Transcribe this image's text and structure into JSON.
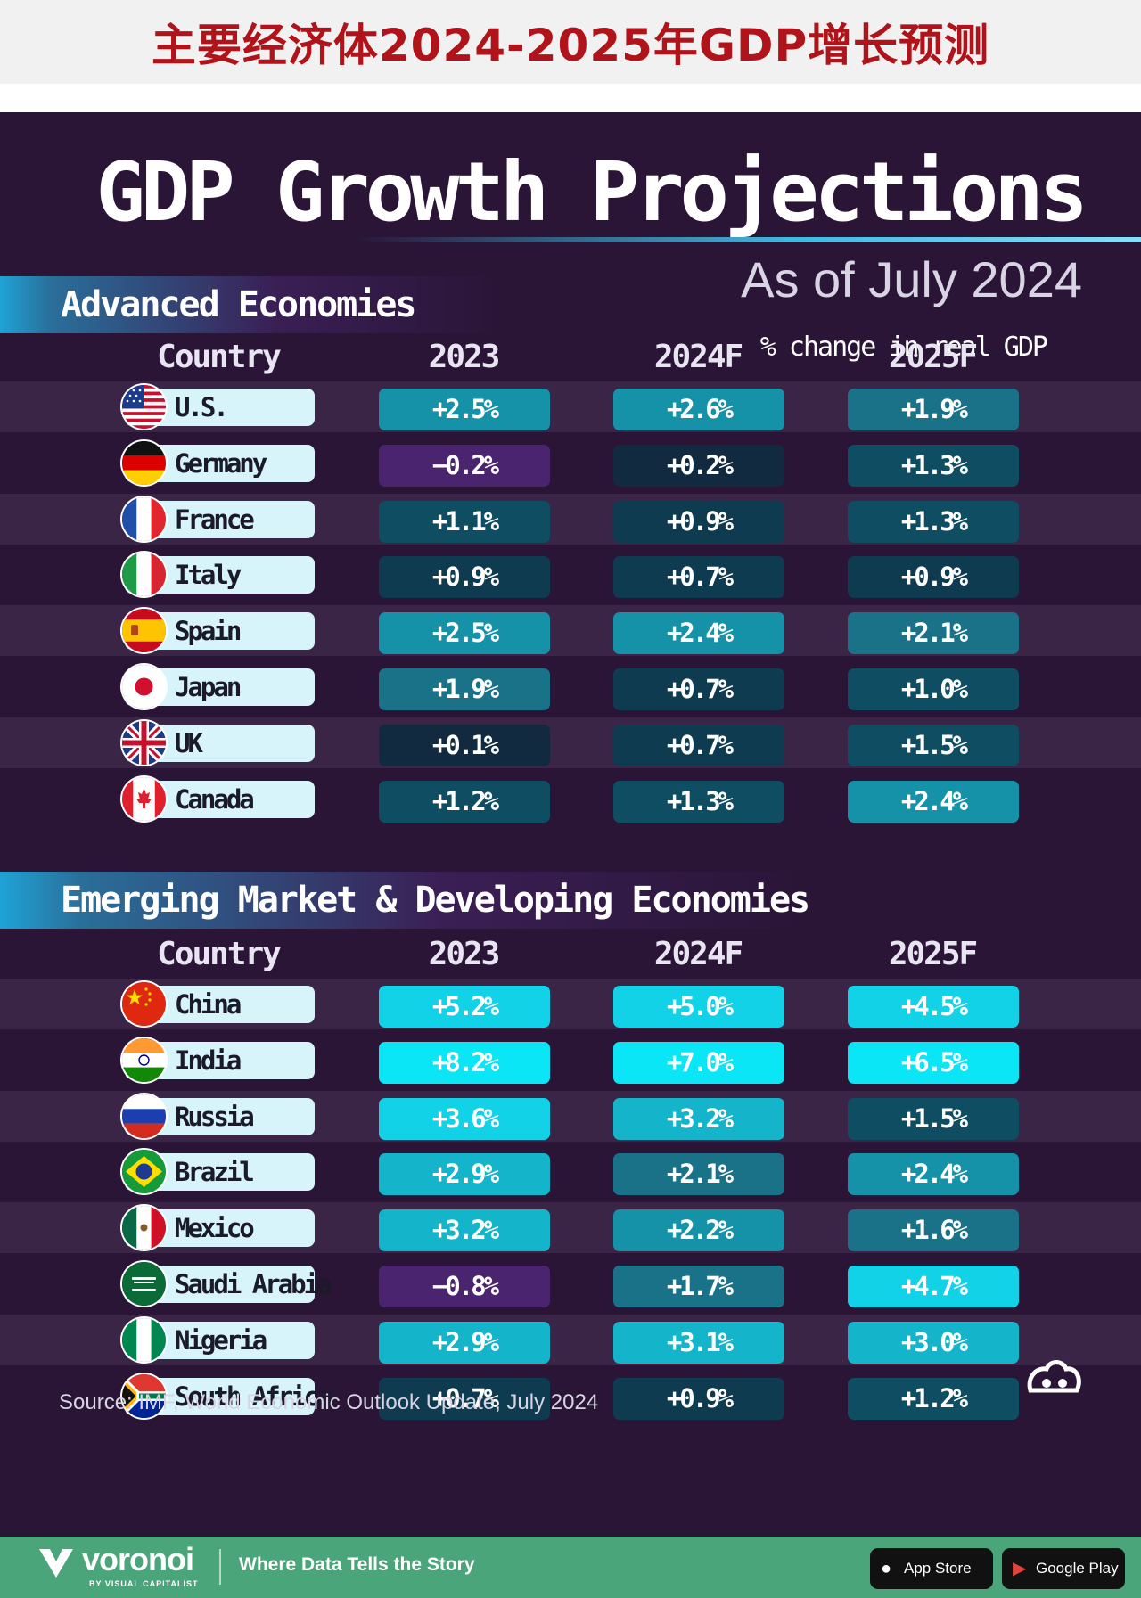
{
  "banner": {
    "title": "主要经济体2024-2025年GDP增长预测"
  },
  "header": {
    "title": "GDP Growth Projections",
    "subtitle": "As of July 2024"
  },
  "colors": {
    "background": "#2a1537",
    "banner_red": "#b0141a",
    "negative": "#4b2470",
    "scale": [
      "#112a3f",
      "#0f3b50",
      "#0f4e62",
      "#1a7289",
      "#1591a8",
      "#14b4ca",
      "#12d2e8",
      "#0ae6f6"
    ]
  },
  "chart_data": [
    {
      "type": "table",
      "title": "Advanced Economies",
      "unit_note": "% change in real GDP",
      "columns": [
        "Country",
        "2023",
        "2024F",
        "2025F"
      ],
      "rows": [
        {
          "country": "U.S.",
          "flag": "us-flag-icon",
          "values": [
            "+2.5%",
            "+2.6%",
            "+1.9%"
          ],
          "numbers": [
            2.5,
            2.6,
            1.9
          ]
        },
        {
          "country": "Germany",
          "flag": "germany-flag-icon",
          "values": [
            "−0.2%",
            "+0.2%",
            "+1.3%"
          ],
          "numbers": [
            -0.2,
            0.2,
            1.3
          ]
        },
        {
          "country": "France",
          "flag": "france-flag-icon",
          "values": [
            "+1.1%",
            "+0.9%",
            "+1.3%"
          ],
          "numbers": [
            1.1,
            0.9,
            1.3
          ]
        },
        {
          "country": "Italy",
          "flag": "italy-flag-icon",
          "values": [
            "+0.9%",
            "+0.7%",
            "+0.9%"
          ],
          "numbers": [
            0.9,
            0.7,
            0.9
          ]
        },
        {
          "country": "Spain",
          "flag": "spain-flag-icon",
          "values": [
            "+2.5%",
            "+2.4%",
            "+2.1%"
          ],
          "numbers": [
            2.5,
            2.4,
            2.1
          ]
        },
        {
          "country": "Japan",
          "flag": "japan-flag-icon",
          "values": [
            "+1.9%",
            "+0.7%",
            "+1.0%"
          ],
          "numbers": [
            1.9,
            0.7,
            1.0
          ]
        },
        {
          "country": "UK",
          "flag": "uk-flag-icon",
          "values": [
            "+0.1%",
            "+0.7%",
            "+1.5%"
          ],
          "numbers": [
            0.1,
            0.7,
            1.5
          ]
        },
        {
          "country": "Canada",
          "flag": "canada-flag-icon",
          "values": [
            "+1.2%",
            "+1.3%",
            "+2.4%"
          ],
          "numbers": [
            1.2,
            1.3,
            2.4
          ]
        }
      ]
    },
    {
      "type": "table",
      "title": "Emerging Market & Developing Economies",
      "columns": [
        "Country",
        "2023",
        "2024F",
        "2025F"
      ],
      "rows": [
        {
          "country": "China",
          "flag": "china-flag-icon",
          "values": [
            "+5.2%",
            "+5.0%",
            "+4.5%"
          ],
          "numbers": [
            5.2,
            5.0,
            4.5
          ]
        },
        {
          "country": "India",
          "flag": "india-flag-icon",
          "values": [
            "+8.2%",
            "+7.0%",
            "+6.5%"
          ],
          "numbers": [
            8.2,
            7.0,
            6.5
          ]
        },
        {
          "country": "Russia",
          "flag": "russia-flag-icon",
          "values": [
            "+3.6%",
            "+3.2%",
            "+1.5%"
          ],
          "numbers": [
            3.6,
            3.2,
            1.5
          ]
        },
        {
          "country": "Brazil",
          "flag": "brazil-flag-icon",
          "values": [
            "+2.9%",
            "+2.1%",
            "+2.4%"
          ],
          "numbers": [
            2.9,
            2.1,
            2.4
          ]
        },
        {
          "country": "Mexico",
          "flag": "mexico-flag-icon",
          "values": [
            "+3.2%",
            "+2.2%",
            "+1.6%"
          ],
          "numbers": [
            3.2,
            2.2,
            1.6
          ]
        },
        {
          "country": "Saudi Arabia",
          "flag": "saudi-arabia-flag-icon",
          "values": [
            "−0.8%",
            "+1.7%",
            "+4.7%"
          ],
          "numbers": [
            -0.8,
            1.7,
            4.7
          ]
        },
        {
          "country": "Nigeria",
          "flag": "nigeria-flag-icon",
          "values": [
            "+2.9%",
            "+3.1%",
            "+3.0%"
          ],
          "numbers": [
            2.9,
            3.1,
            3.0
          ]
        },
        {
          "country": "South Africa",
          "flag": "south-africa-flag-icon",
          "values": [
            "+0.7%",
            "+0.9%",
            "+1.2%"
          ],
          "numbers": [
            0.7,
            0.9,
            1.2
          ]
        }
      ]
    }
  ],
  "source": "Source: IMF, World Economic Outlook Update, July 2024",
  "footer": {
    "brand": "voronoi",
    "brand_sub": "BY VISUAL CAPITALIST",
    "tagline": "Where Data Tells the Story",
    "app_store": "App Store",
    "google_play": "Google Play"
  }
}
